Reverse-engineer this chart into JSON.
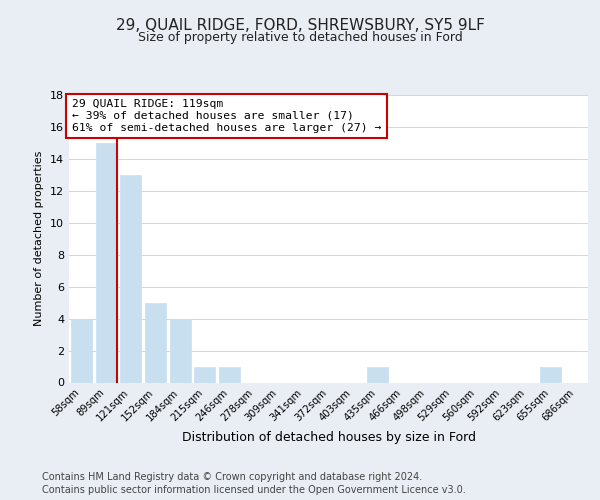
{
  "title": "29, QUAIL RIDGE, FORD, SHREWSBURY, SY5 9LF",
  "subtitle": "Size of property relative to detached houses in Ford",
  "xlabel": "Distribution of detached houses by size in Ford",
  "ylabel": "Number of detached properties",
  "bar_color": "#c8dff0",
  "bar_edge_color": "#c8dff0",
  "background_color": "#e8eef4",
  "plot_background": "#ffffff",
  "categories": [
    "58sqm",
    "89sqm",
    "121sqm",
    "152sqm",
    "184sqm",
    "215sqm",
    "246sqm",
    "278sqm",
    "309sqm",
    "341sqm",
    "372sqm",
    "403sqm",
    "435sqm",
    "466sqm",
    "498sqm",
    "529sqm",
    "560sqm",
    "592sqm",
    "623sqm",
    "655sqm",
    "686sqm"
  ],
  "values": [
    4,
    15,
    13,
    5,
    4,
    1,
    1,
    0,
    0,
    0,
    0,
    0,
    1,
    0,
    0,
    0,
    0,
    0,
    0,
    1,
    0
  ],
  "ylim": [
    0,
    18
  ],
  "yticks": [
    0,
    2,
    4,
    6,
    8,
    10,
    12,
    14,
    16,
    18
  ],
  "property_line_color": "#cc0000",
  "annotation_line1": "29 QUAIL RIDGE: 119sqm",
  "annotation_line2": "← 39% of detached houses are smaller (17)",
  "annotation_line3": "61% of semi-detached houses are larger (27) →",
  "annotation_box_color": "#ffffff",
  "annotation_border_color": "#cc0000",
  "footer1": "Contains HM Land Registry data © Crown copyright and database right 2024.",
  "footer2": "Contains public sector information licensed under the Open Government Licence v3.0."
}
